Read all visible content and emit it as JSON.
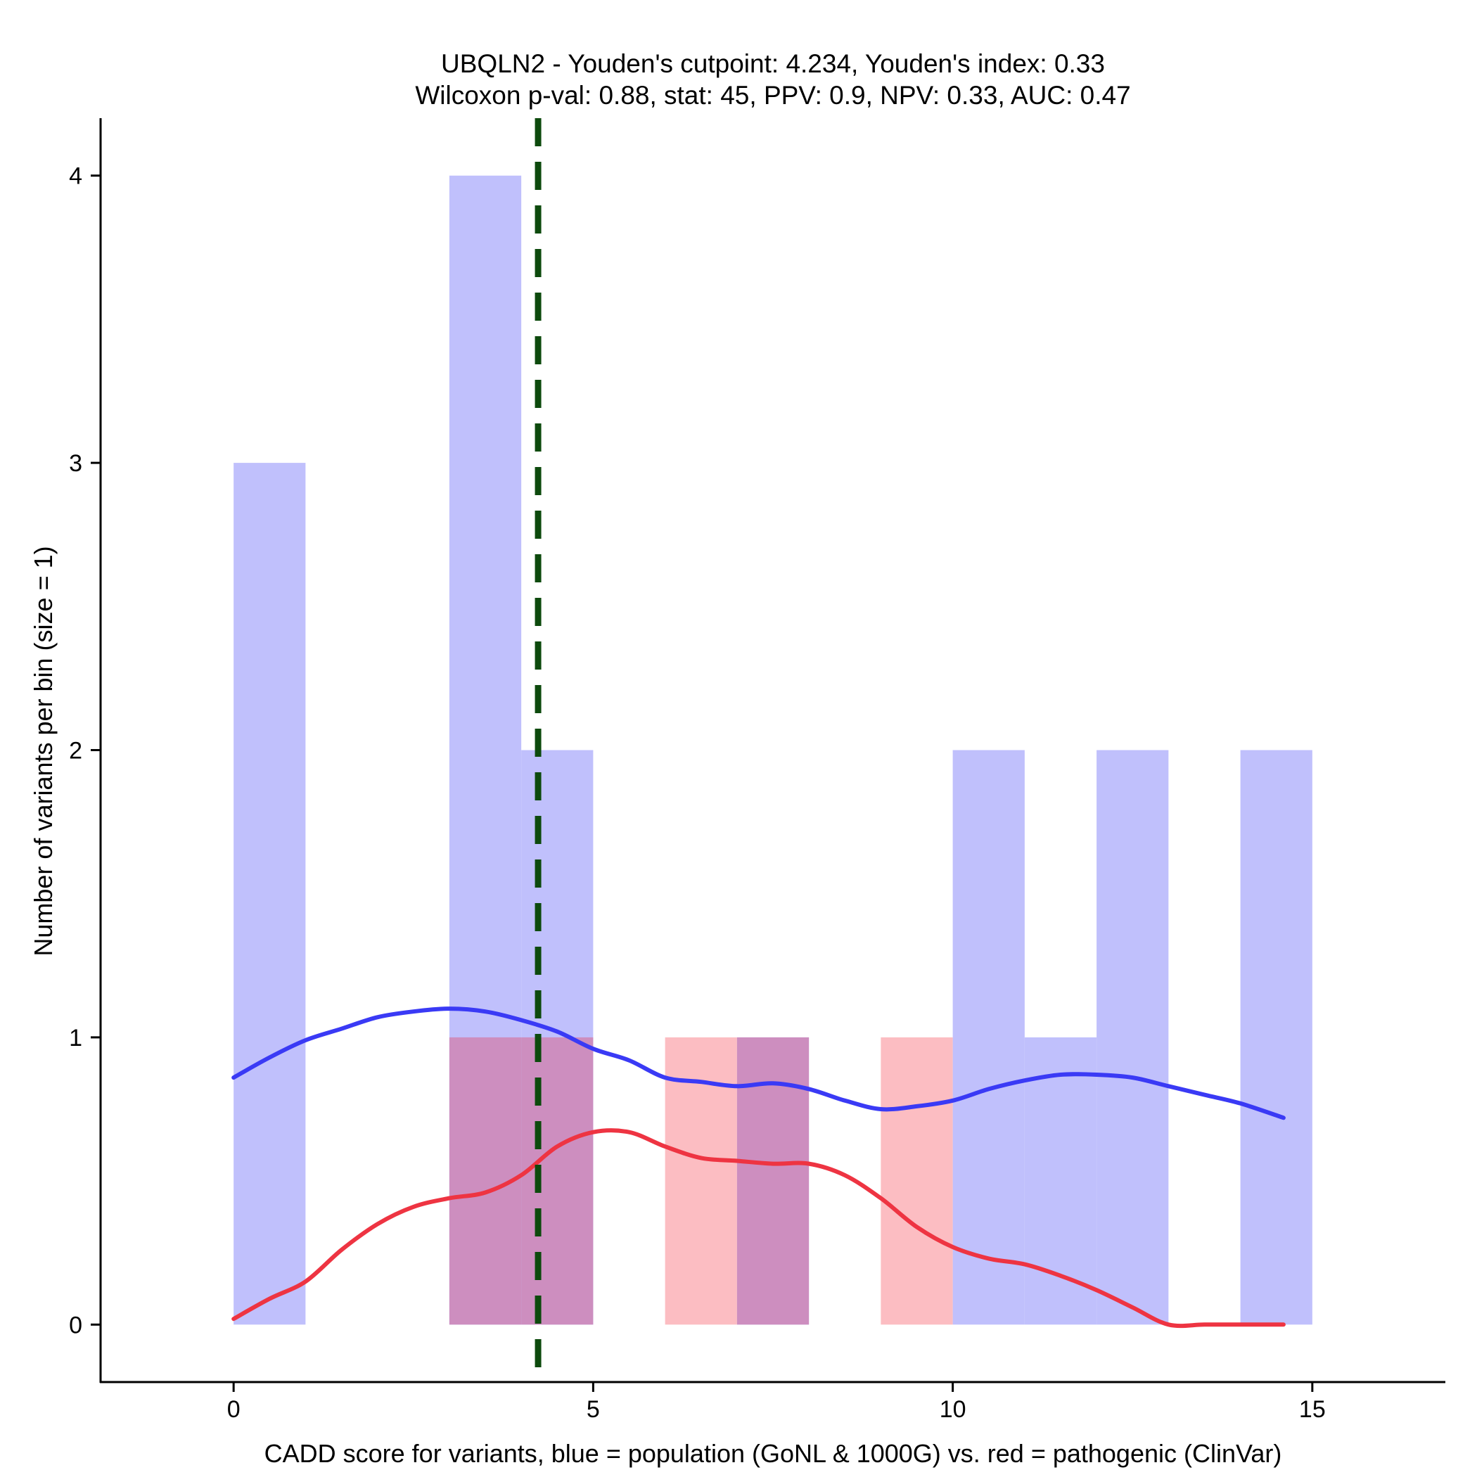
{
  "chart_data": {
    "type": "bar",
    "title_line1": "UBQLN2 - Youden's cutpoint: 4.234, Youden's index: 0.33",
    "title_line2": "Wilcoxon p-val: 0.88, stat: 45, PPV: 0.9, NPV: 0.33, AUC: 0.47",
    "xlabel": "CADD score for variants, blue = population (GoNL & 1000G) vs. red = pathogenic (ClinVar)",
    "ylabel": "Number of variants per bin (size = 1)",
    "xlim": [
      -1.85,
      16.85
    ],
    "ylim": [
      -0.2,
      4.2
    ],
    "x_ticks": [
      0,
      5,
      10,
      15
    ],
    "y_ticks": [
      0,
      1,
      2,
      3,
      4
    ],
    "bin_size": 1,
    "cutpoint": 4.234,
    "colors": {
      "population_bar": "#c0c0fc",
      "pathogenic_bar": "#fcbdc2",
      "overlap_bar": "#cd8ebf",
      "population_line": "#3a3af5",
      "pathogenic_line": "#ee3442",
      "cutpoint_line": "#0d4a0d"
    },
    "series": [
      {
        "name": "population",
        "bins": [
          {
            "start": 0,
            "count": 3
          },
          {
            "start": 3,
            "count": 4
          },
          {
            "start": 4,
            "count": 2
          },
          {
            "start": 7,
            "count": 1
          },
          {
            "start": 10,
            "count": 2
          },
          {
            "start": 11,
            "count": 1
          },
          {
            "start": 12,
            "count": 2
          },
          {
            "start": 14,
            "count": 2
          }
        ]
      },
      {
        "name": "pathogenic",
        "bins": [
          {
            "start": 3,
            "count": 1
          },
          {
            "start": 4,
            "count": 1
          },
          {
            "start": 6,
            "count": 1
          },
          {
            "start": 7,
            "count": 1
          },
          {
            "start": 9,
            "count": 1
          }
        ]
      }
    ],
    "density_lines": [
      {
        "name": "population",
        "points": [
          [
            0,
            0.86
          ],
          [
            0.5,
            0.93
          ],
          [
            1,
            0.99
          ],
          [
            1.5,
            1.03
          ],
          [
            2,
            1.07
          ],
          [
            2.5,
            1.09
          ],
          [
            3,
            1.1
          ],
          [
            3.5,
            1.09
          ],
          [
            4,
            1.06
          ],
          [
            4.5,
            1.02
          ],
          [
            5,
            0.96
          ],
          [
            5.5,
            0.92
          ],
          [
            6,
            0.86
          ],
          [
            6.5,
            0.845
          ],
          [
            7,
            0.83
          ],
          [
            7.5,
            0.84
          ],
          [
            8,
            0.82
          ],
          [
            8.5,
            0.78
          ],
          [
            9,
            0.75
          ],
          [
            9.5,
            0.76
          ],
          [
            10,
            0.78
          ],
          [
            10.5,
            0.82
          ],
          [
            11,
            0.85
          ],
          [
            11.5,
            0.87
          ],
          [
            12,
            0.87
          ],
          [
            12.5,
            0.86
          ],
          [
            13,
            0.83
          ],
          [
            13.5,
            0.8
          ],
          [
            14,
            0.77
          ],
          [
            14.6,
            0.72
          ]
        ]
      },
      {
        "name": "pathogenic",
        "points": [
          [
            0,
            0.02
          ],
          [
            0.5,
            0.09
          ],
          [
            1,
            0.15
          ],
          [
            1.5,
            0.26
          ],
          [
            2,
            0.35
          ],
          [
            2.5,
            0.41
          ],
          [
            3,
            0.44
          ],
          [
            3.5,
            0.46
          ],
          [
            4,
            0.52
          ],
          [
            4.5,
            0.62
          ],
          [
            5,
            0.67
          ],
          [
            5.5,
            0.67
          ],
          [
            6,
            0.62
          ],
          [
            6.5,
            0.58
          ],
          [
            7,
            0.57
          ],
          [
            7.5,
            0.56
          ],
          [
            8,
            0.56
          ],
          [
            8.5,
            0.52
          ],
          [
            9,
            0.44
          ],
          [
            9.5,
            0.34
          ],
          [
            10,
            0.27
          ],
          [
            10.5,
            0.23
          ],
          [
            11,
            0.21
          ],
          [
            11.5,
            0.17
          ],
          [
            12,
            0.12
          ],
          [
            12.5,
            0.06
          ],
          [
            13,
            0.0
          ],
          [
            13.5,
            0.0
          ],
          [
            14,
            0.0
          ],
          [
            14.6,
            0.0
          ]
        ]
      }
    ]
  }
}
